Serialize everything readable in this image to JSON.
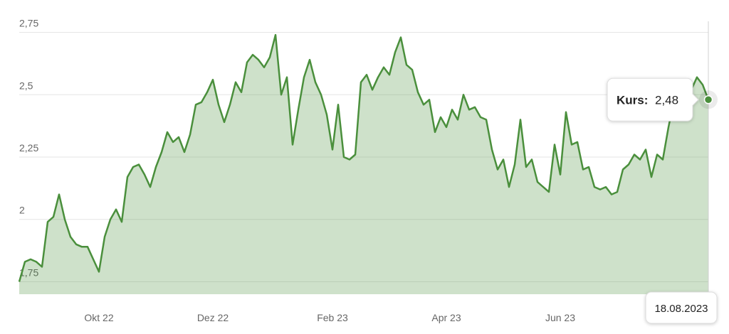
{
  "chart_data": {
    "type": "area",
    "categories": [
      null,
      null,
      null,
      null,
      null,
      null,
      null,
      null,
      null,
      null,
      null,
      null,
      null,
      null,
      "Okt 22",
      null,
      null,
      null,
      null,
      null,
      null,
      null,
      null,
      null,
      null,
      null,
      null,
      null,
      null,
      null,
      null,
      null,
      null,
      null,
      "Dez 22",
      null,
      null,
      null,
      null,
      null,
      null,
      null,
      null,
      null,
      null,
      null,
      null,
      null,
      null,
      null,
      null,
      null,
      null,
      null,
      null,
      "Feb 23",
      null,
      null,
      null,
      null,
      null,
      null,
      null,
      null,
      null,
      null,
      null,
      null,
      null,
      null,
      null,
      null,
      null,
      null,
      null,
      "Apr 23",
      null,
      null,
      null,
      null,
      null,
      null,
      null,
      null,
      null,
      null,
      null,
      null,
      null,
      null,
      null,
      null,
      null,
      null,
      null,
      "Jun 23",
      null,
      null,
      null,
      null,
      null,
      null,
      null,
      null,
      null,
      null,
      null,
      null,
      null,
      null,
      null,
      null,
      null,
      null,
      null,
      null,
      null,
      null,
      null,
      null,
      null,
      "18.08.2023"
    ],
    "values": [
      1.75,
      1.83,
      1.84,
      1.83,
      1.81,
      1.99,
      2.01,
      2.1,
      2.0,
      1.93,
      1.9,
      1.89,
      1.89,
      1.84,
      1.79,
      1.93,
      2.0,
      2.04,
      1.99,
      2.17,
      2.21,
      2.22,
      2.18,
      2.13,
      2.21,
      2.27,
      2.35,
      2.31,
      2.33,
      2.27,
      2.34,
      2.46,
      2.47,
      2.51,
      2.56,
      2.46,
      2.39,
      2.46,
      2.55,
      2.51,
      2.63,
      2.66,
      2.64,
      2.61,
      2.65,
      2.74,
      2.5,
      2.57,
      2.3,
      2.44,
      2.57,
      2.64,
      2.55,
      2.5,
      2.42,
      2.28,
      2.46,
      2.25,
      2.24,
      2.26,
      2.55,
      2.58,
      2.52,
      2.57,
      2.61,
      2.58,
      2.67,
      2.73,
      2.62,
      2.6,
      2.51,
      2.46,
      2.48,
      2.35,
      2.41,
      2.37,
      2.44,
      2.4,
      2.5,
      2.44,
      2.45,
      2.41,
      2.4,
      2.28,
      2.2,
      2.24,
      2.13,
      2.22,
      2.4,
      2.21,
      2.24,
      2.15,
      2.13,
      2.11,
      2.3,
      2.18,
      2.43,
      2.3,
      2.31,
      2.2,
      2.21,
      2.13,
      2.12,
      2.13,
      2.1,
      2.11,
      2.2,
      2.22,
      2.26,
      2.24,
      2.28,
      2.17,
      2.26,
      2.24,
      2.37,
      2.48,
      2.52,
      2.54,
      2.52,
      2.57,
      2.54,
      2.48
    ],
    "color": "#4a8f3c",
    "ylim": [
      1.7,
      2.8
    ],
    "yticks": [
      {
        "value": 1.75,
        "label": "1,75"
      },
      2,
      {
        "value": 2.25,
        "label": "2,25"
      },
      {
        "value": 2.5,
        "label": "2,5"
      },
      {
        "value": 2.75,
        "label": "2,75"
      }
    ],
    "grid": true,
    "tooltip": {
      "label": "Kurs:",
      "value": 2.48,
      "value_label": "2,48"
    }
  }
}
